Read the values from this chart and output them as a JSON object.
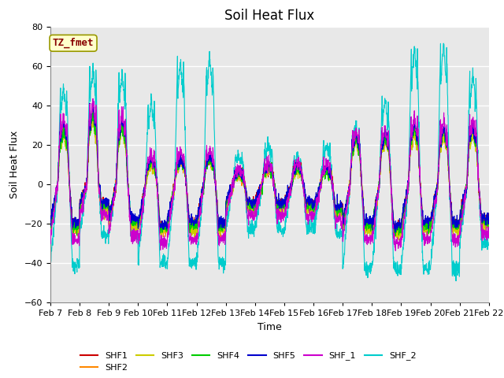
{
  "title": "Soil Heat Flux",
  "ylabel": "Soil Heat Flux",
  "xlabel": "Time",
  "ylim": [
    -60,
    80
  ],
  "yticks": [
    -60,
    -40,
    -20,
    0,
    20,
    40,
    60,
    80
  ],
  "date_labels": [
    "Feb 7",
    "Feb 8",
    "Feb 9",
    "Feb 10",
    "Feb 11",
    "Feb 12",
    "Feb 13",
    "Feb 14",
    "Feb 15",
    "Feb 16",
    "Feb 17",
    "Feb 18",
    "Feb 19",
    "Feb 20",
    "Feb 21",
    "Feb 22"
  ],
  "series_colors": {
    "SHF1": "#cc0000",
    "SHF2": "#ff8800",
    "SHF3": "#cccc00",
    "SHF4": "#00cc00",
    "SHF5": "#0000cc",
    "SHF_1": "#cc00cc",
    "SHF_2": "#00cccc"
  },
  "annotation_text": "TZ_fmet",
  "annotation_bg": "#ffffcc",
  "annotation_border": "#999900",
  "annotation_color": "#880000",
  "bg_color": "#e8e8e8",
  "grid_color": "#ffffff",
  "title_fontsize": 12,
  "axis_fontsize": 9,
  "tick_fontsize": 8,
  "legend_fontsize": 8
}
